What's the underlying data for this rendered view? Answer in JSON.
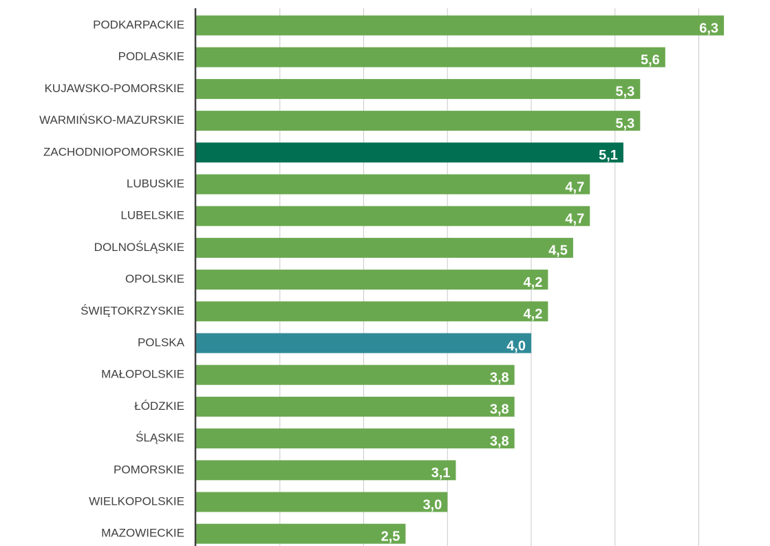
{
  "chart_data": {
    "type": "barh",
    "categories": [
      "PODKARPACKIE",
      "PODLASKIE",
      "KUJAWSKO-POMORSKIE",
      "WARMIŃSKO-MAZURSKIE",
      "ZACHODNIOPOMORSKIE",
      "LUBUSKIE",
      "LUBELSKIE",
      "DOLNOŚLĄSKIE",
      "OPOLSKIE",
      "ŚWIĘTOKRZYSKIE",
      "POLSKA",
      "MAŁOPOLSKIE",
      "ŁÓDZKIE",
      "ŚLĄSKIE",
      "POMORSKIE",
      "WIELKOPOLSKIE",
      "MAZOWIECKIE"
    ],
    "values": [
      6.3,
      5.6,
      5.3,
      5.3,
      5.1,
      4.7,
      4.7,
      4.5,
      4.2,
      4.2,
      4.0,
      3.8,
      3.8,
      3.8,
      3.1,
      3.0,
      2.5
    ],
    "value_labels": [
      "6,3",
      "5,6",
      "5,3",
      "5,3",
      "5,1",
      "4,7",
      "4,7",
      "4,5",
      "4,2",
      "4,2",
      "4,0",
      "3,8",
      "3,8",
      "3,8",
      "3,1",
      "3,0",
      "2,5"
    ],
    "colors": [
      "#6aa84f",
      "#6aa84f",
      "#6aa84f",
      "#6aa84f",
      "#006f52",
      "#6aa84f",
      "#6aa84f",
      "#6aa84f",
      "#6aa84f",
      "#6aa84f",
      "#2f8a98",
      "#6aa84f",
      "#6aa84f",
      "#6aa84f",
      "#6aa84f",
      "#6aa84f",
      "#6aa84f"
    ],
    "xlim": [
      0,
      6.85
    ],
    "xticks": [
      0,
      1,
      2,
      3,
      4,
      5,
      6
    ],
    "grid": true
  }
}
